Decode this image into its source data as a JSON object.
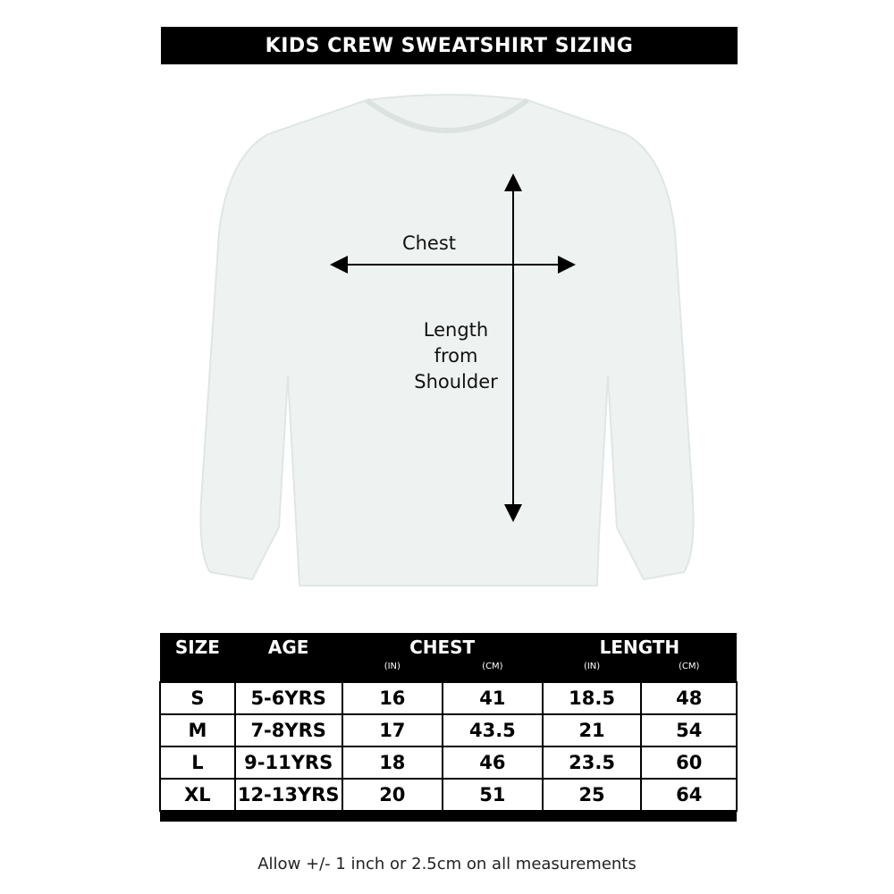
{
  "title": "KIDS CREW SWEATSHIRT SIZING",
  "diagram": {
    "chest_label": "Chest",
    "length_label_lines": [
      "Length",
      "from",
      "Shoulder"
    ],
    "garment_color": "#eef3f1"
  },
  "table": {
    "headers": [
      "SIZE",
      "AGE",
      "CHEST",
      "LENGTH"
    ],
    "units": [
      "(IN)",
      "(CM)",
      "(IN)",
      "(CM)"
    ],
    "rows": [
      [
        "S",
        "5-6YRS",
        "16",
        "41",
        "18.5",
        "48"
      ],
      [
        "M",
        "7-8YRS",
        "17",
        "43.5",
        "21",
        "54"
      ],
      [
        "L",
        "9-11YRS",
        "18",
        "46",
        "23.5",
        "60"
      ],
      [
        "XL",
        "12-13YRS",
        "20",
        "51",
        "25",
        "64"
      ]
    ]
  },
  "note": "Allow +/- 1 inch or 2.5cm on all measurements"
}
